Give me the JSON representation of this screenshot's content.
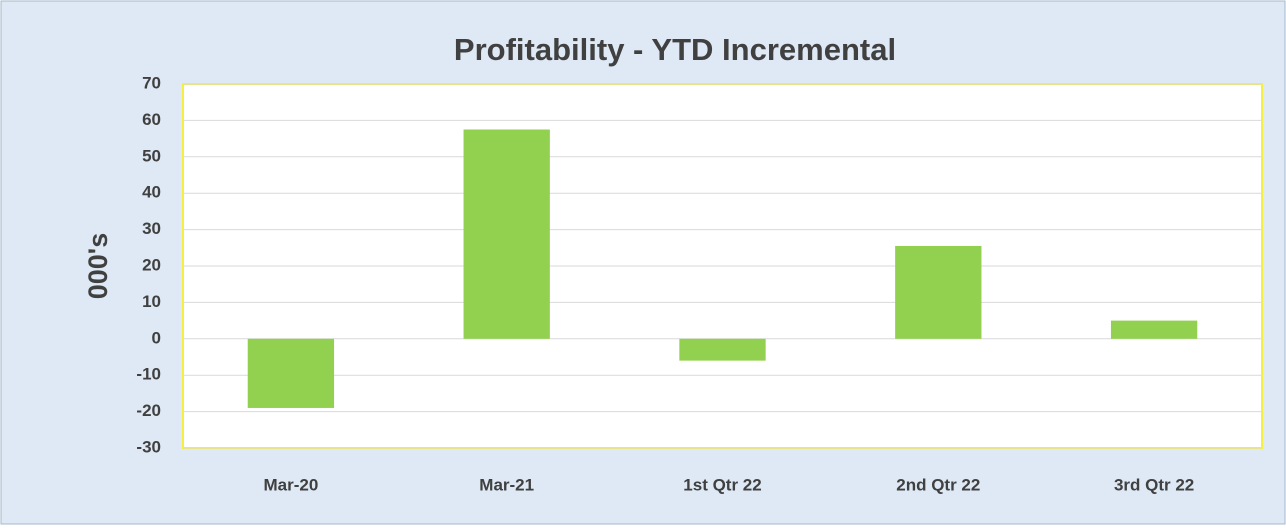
{
  "chart_data": {
    "type": "bar",
    "title": "Profitability - YTD Incremental",
    "y_label": "000's",
    "categories": [
      "Mar-20",
      "Mar-21",
      "1st Qtr 22",
      "2nd Qtr 22",
      "3rd Qtr 22"
    ],
    "values": [
      -19,
      57.5,
      -6,
      25.5,
      5
    ],
    "color": "#92d050",
    "ylim": [
      -30,
      70
    ],
    "yticks": [
      -30,
      -20,
      -10,
      0,
      10,
      20,
      30,
      40,
      50,
      60,
      70
    ],
    "grid": true
  }
}
